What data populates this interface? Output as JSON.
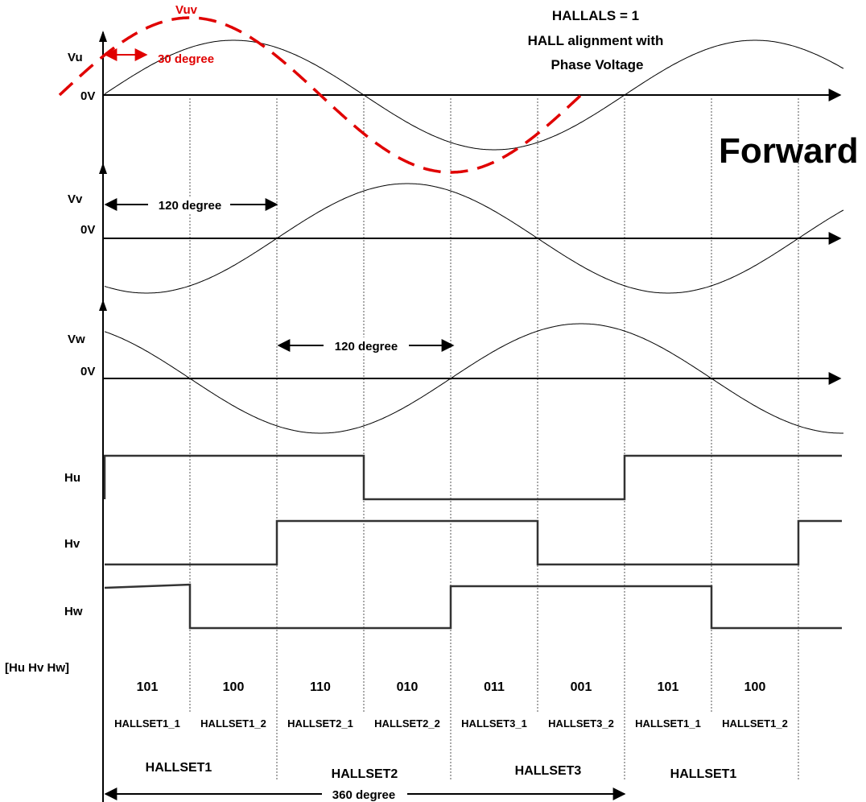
{
  "signals": {
    "vu": "Vu",
    "vv": "Vv",
    "vw": "Vw",
    "hu": "Hu",
    "hv": "Hv",
    "hw": "Hw",
    "zero": "0V",
    "vuv": "Vuv"
  },
  "title": {
    "line1": "HALLALS = 1",
    "line2": "HALL alignment with",
    "line3": "Phase Voltage"
  },
  "direction": "Forward",
  "angles": {
    "deg30": "30 degree",
    "deg120_vv": "120 degree",
    "deg120_vw": "120 degree",
    "deg360": "360 degree"
  },
  "bit_header": "[Hu Hv Hw]",
  "codes": [
    "101",
    "100",
    "110",
    "010",
    "011",
    "001",
    "101",
    "100"
  ],
  "hallset_segments": [
    "HALLSET1_1",
    "HALLSET1_2",
    "HALLSET2_1",
    "HALLSET2_2",
    "HALLSET3_1",
    "HALLSET3_2",
    "HALLSET1_1",
    "HALLSET1_2"
  ],
  "hallset_groups": [
    "HALLSET1",
    "HALLSET2",
    "HALLSET3",
    "HALLSET1"
  ],
  "colors": {
    "waveform": "#000000",
    "vuv": "#e00000",
    "digital": "#333333"
  }
}
